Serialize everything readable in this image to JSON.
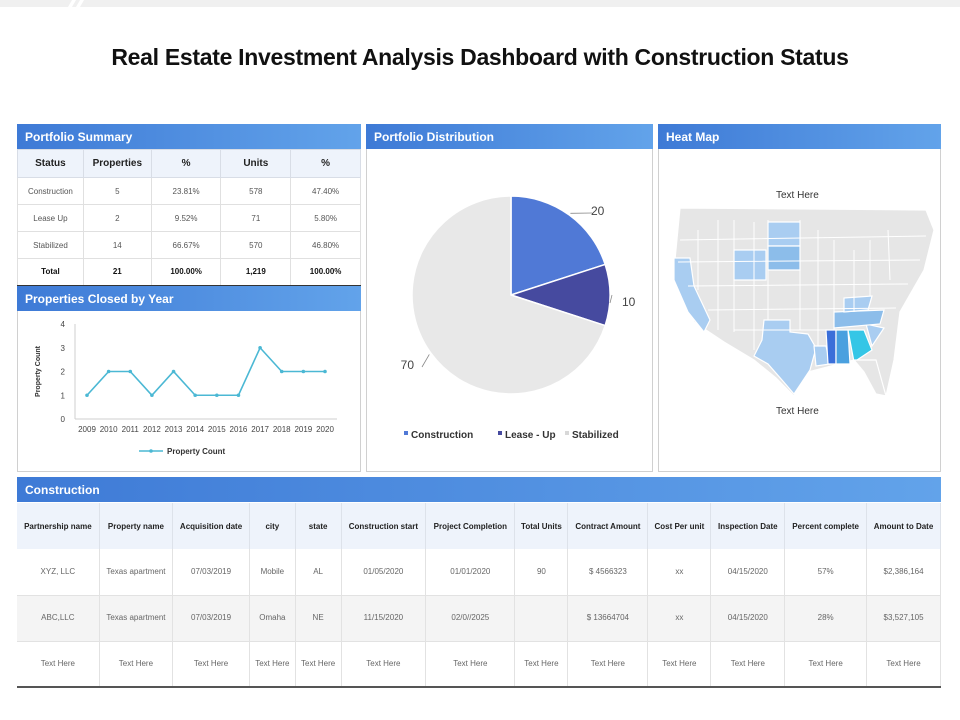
{
  "title": "Real Estate Investment Analysis Dashboard with Construction Status",
  "colors": {
    "header_start": "#3e7ad6",
    "header_end": "#62a3ea",
    "pie_construction": "#5079d6",
    "pie_lease_up": "#464a9f",
    "pie_stabilized": "#e8e8e8",
    "line": "#4bb8d4"
  },
  "portfolio_summary": {
    "header": "Portfolio Summary",
    "columns": [
      "Status",
      "Properties",
      "%",
      "Units",
      "%"
    ],
    "rows": [
      [
        "Construction",
        "5",
        "23.81%",
        "578",
        "47.40%"
      ],
      [
        "Lease  Up",
        "2",
        "9.52%",
        "71",
        "5.80%"
      ],
      [
        "Stabilized",
        "14",
        "66.67%",
        "570",
        "46.80%"
      ]
    ],
    "total": [
      "Total",
      "21",
      "100.00%",
      "1,219",
      "100.00%"
    ]
  },
  "properties_closed": {
    "header": "Properties Closed by Year",
    "chart_data": {
      "type": "line",
      "x": [
        "2009",
        "2010",
        "2011",
        "2012",
        "2013",
        "2014",
        "2015",
        "2016",
        "2017",
        "2018",
        "2019",
        "2020"
      ],
      "series": [
        {
          "name": "Property Count",
          "values": [
            1,
            2,
            2,
            1,
            2,
            1,
            1,
            1,
            3,
            2,
            2,
            2
          ]
        }
      ],
      "ylabel": "Property Count",
      "ylim": [
        0,
        4
      ],
      "yticks": [
        "0",
        "1",
        "2",
        "3",
        "4"
      ],
      "legend": "bottom"
    }
  },
  "portfolio_distribution": {
    "header": "Portfolio Distribution",
    "chart_data": {
      "type": "pie",
      "categories": [
        "Construction",
        "Lease - Up",
        "Stabilized"
      ],
      "values": [
        20,
        10,
        70
      ],
      "data_labels": [
        "20",
        "10",
        "70"
      ],
      "legend": "bottom"
    }
  },
  "heat_map": {
    "header": "Heat Map",
    "text_top": "Text Here",
    "text_bottom": "Text Here"
  },
  "construction": {
    "header": "Construction",
    "columns": [
      "Partnership name",
      "Property name",
      "Acquisition date",
      "city",
      "state",
      "Construction start",
      "Project Completion",
      "Total Units",
      "Contract Amount",
      "Cost Per unit",
      "Inspection Date",
      "Percent complete",
      "Amount to Date"
    ],
    "rows": [
      [
        "XYZ, LLC",
        "Texas apartment",
        "07/03/2019",
        "Mobile",
        "AL",
        "01/05/2020",
        "01/01/2020",
        "90",
        "$ 4566323",
        "xx",
        "04/15/2020",
        "57%",
        "$2,386,164"
      ],
      [
        "ABC,LLC",
        "Texas apartment",
        "07/03/2019",
        "Omaha",
        "NE",
        "11/15/2020",
        "02/0//2025",
        "",
        "$ 13664704",
        "xx",
        "04/15/2020",
        "28%",
        "$3,527,105"
      ],
      [
        "Text Here",
        "Text Here",
        "Text Here",
        "Text Here",
        "Text Here",
        "Text Here",
        "Text Here",
        "Text Here",
        "Text Here",
        "Text Here",
        "Text Here",
        "Text Here",
        "Text Here"
      ]
    ]
  }
}
